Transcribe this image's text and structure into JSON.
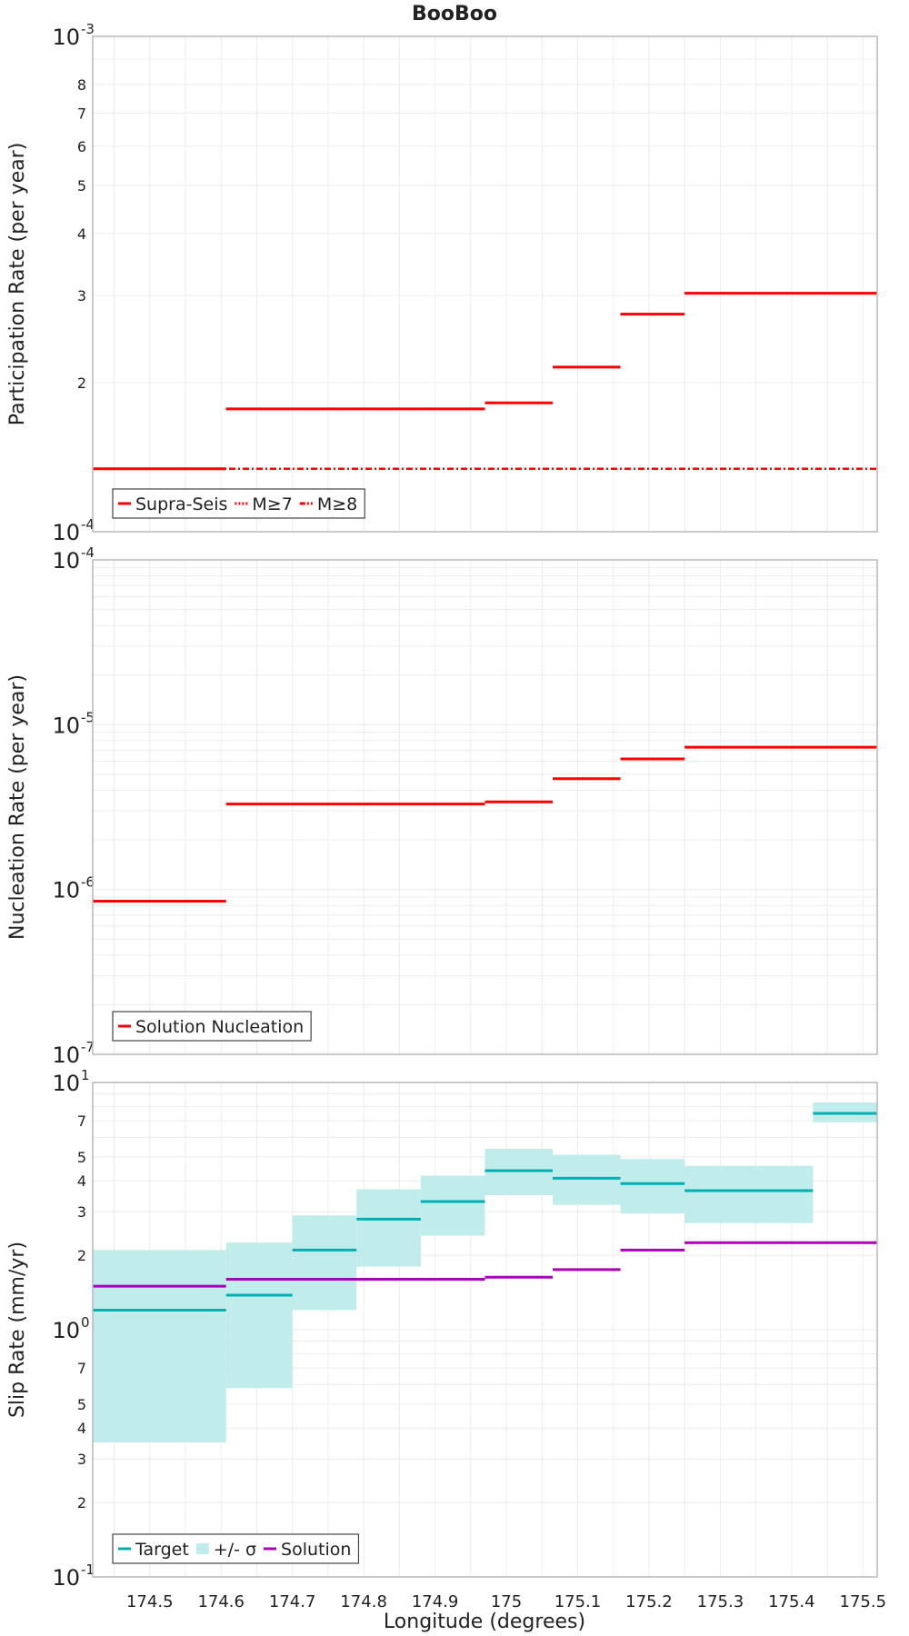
{
  "title": "BooBoo",
  "xlabel": "Longitude (degrees)",
  "colors": {
    "red": "#ff0000",
    "cyan": "#00b0b0",
    "band": "#c0ecec",
    "purple": "#aa00bb",
    "grid": "#ececec",
    "frame": "#b8b8b8"
  },
  "chart_data": [
    {
      "type": "line",
      "id": "participation",
      "ylabel": "Participation Rate (per year)",
      "yscale": "log",
      "xlim": [
        174.42,
        175.52
      ],
      "ylim": [
        0.0001,
        0.001
      ],
      "x_ticks": [
        "174.5",
        "174.6",
        "174.7",
        "174.8",
        "174.9",
        "175",
        "175.1",
        "175.2",
        "175.3",
        "175.4",
        "175.5"
      ],
      "y_ticks": [
        "10-4",
        "2",
        "3",
        "4",
        "5",
        "6",
        "7",
        "8",
        "10-3"
      ],
      "legend": [
        "Supra-Seis",
        "M≥7",
        "M≥8"
      ],
      "legend_position": "bottom-left",
      "grid": true,
      "series": [
        {
          "name": "Supra-Seis",
          "style": "solid",
          "segments": [
            [
              174.42,
              174.607,
              0.000134
            ],
            [
              174.607,
              174.97,
              0.000177
            ],
            [
              174.97,
              175.065,
              0.000182
            ],
            [
              175.065,
              175.16,
              0.000215
            ],
            [
              175.16,
              175.25,
              0.000275
            ],
            [
              175.25,
              175.52,
              0.000303
            ]
          ]
        },
        {
          "name": "M≥7",
          "style": "dotted",
          "segments": [
            [
              174.42,
              174.607,
              0.000134
            ],
            [
              174.607,
              174.97,
              0.000177
            ],
            [
              174.97,
              175.065,
              0.000182
            ],
            [
              175.065,
              175.16,
              0.000215
            ],
            [
              175.16,
              175.25,
              0.000275
            ],
            [
              175.25,
              175.52,
              0.000303
            ]
          ]
        },
        {
          "name": "M≥8",
          "style": "dashdot",
          "segments": [
            [
              174.42,
              175.52,
              0.000134
            ]
          ]
        }
      ]
    },
    {
      "type": "line",
      "id": "nucleation",
      "ylabel": "Nucleation Rate (per year)",
      "yscale": "log",
      "xlim": [
        174.42,
        175.52
      ],
      "ylim": [
        1e-07,
        0.0001
      ],
      "x_ticks": [
        "174.5",
        "174.6",
        "174.7",
        "174.8",
        "174.9",
        "175",
        "175.1",
        "175.2",
        "175.3",
        "175.4",
        "175.5"
      ],
      "y_ticks": [
        "10-7",
        "10-6",
        "10-5",
        "10-4"
      ],
      "legend": [
        "Solution Nucleation"
      ],
      "legend_position": "bottom-left",
      "grid": true,
      "series": [
        {
          "name": "Solution Nucleation",
          "style": "solid",
          "segments": [
            [
              174.42,
              174.607,
              8.5e-07
            ],
            [
              174.607,
              174.97,
              3.3e-06
            ],
            [
              174.97,
              175.065,
              3.4e-06
            ],
            [
              175.065,
              175.16,
              4.7e-06
            ],
            [
              175.16,
              175.25,
              6.2e-06
            ],
            [
              175.25,
              175.52,
              7.3e-06
            ]
          ]
        }
      ]
    },
    {
      "type": "line",
      "id": "slip",
      "ylabel": "Slip Rate (mm/yr)",
      "yscale": "log",
      "xlim": [
        174.42,
        175.52
      ],
      "ylim": [
        0.1,
        10
      ],
      "x_ticks": [
        "174.5",
        "174.6",
        "174.7",
        "174.8",
        "174.9",
        "175",
        "175.1",
        "175.2",
        "175.3",
        "175.4",
        "175.5"
      ],
      "y_ticks": [
        "10-1",
        "2",
        "3",
        "4",
        "5",
        "7",
        "10^0",
        "2",
        "3",
        "4",
        "5",
        "7",
        "10^1"
      ],
      "legend": [
        "Target",
        "+/- σ",
        "Solution"
      ],
      "legend_position": "bottom-left",
      "grid": true,
      "series": [
        {
          "name": "Target",
          "style": "solid",
          "segments": [
            [
              174.42,
              174.607,
              1.2
            ],
            [
              174.607,
              174.7,
              1.38
            ],
            [
              174.7,
              174.79,
              2.1
            ],
            [
              174.79,
              174.88,
              2.8
            ],
            [
              174.88,
              174.97,
              3.3
            ],
            [
              174.97,
              175.065,
              4.4
            ],
            [
              175.065,
              175.16,
              4.1
            ],
            [
              175.16,
              175.25,
              3.9
            ],
            [
              175.25,
              175.43,
              3.65
            ],
            [
              175.43,
              175.52,
              7.5
            ]
          ]
        },
        {
          "name": "+/- σ",
          "style": "band",
          "segments": [
            [
              174.42,
              174.607,
              0.35,
              2.1
            ],
            [
              174.607,
              174.7,
              0.58,
              2.25
            ],
            [
              174.7,
              174.79,
              1.2,
              2.9
            ],
            [
              174.79,
              174.88,
              1.8,
              3.7
            ],
            [
              174.88,
              174.97,
              2.4,
              4.2
            ],
            [
              174.97,
              175.065,
              3.5,
              5.4
            ],
            [
              175.065,
              175.16,
              3.2,
              5.1
            ],
            [
              175.16,
              175.25,
              2.95,
              4.9
            ],
            [
              175.25,
              175.43,
              2.7,
              4.6
            ],
            [
              175.43,
              175.52,
              6.9,
              8.3
            ]
          ]
        },
        {
          "name": "Solution",
          "style": "solid",
          "segments": [
            [
              174.42,
              174.607,
              1.5
            ],
            [
              174.607,
              174.97,
              1.6
            ],
            [
              174.97,
              175.065,
              1.63
            ],
            [
              175.065,
              175.16,
              1.75
            ],
            [
              175.16,
              175.25,
              2.1
            ],
            [
              175.25,
              175.52,
              2.25
            ]
          ]
        }
      ]
    }
  ]
}
